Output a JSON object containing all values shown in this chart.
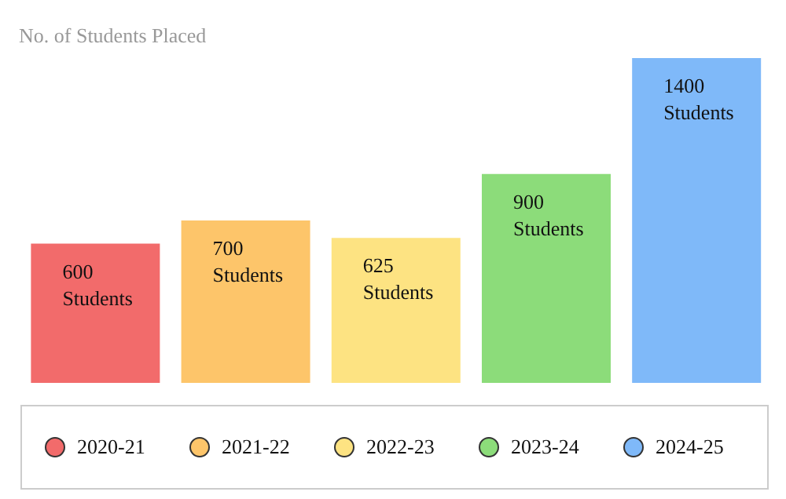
{
  "chart_data": {
    "type": "bar",
    "title": "No. of Students Placed",
    "categories": [
      null,
      null,
      null,
      null,
      null
    ],
    "stacked": true,
    "series": [
      {
        "name": "2020-21",
        "color": "#f26b6b",
        "values": [
          600,
          null,
          null,
          null,
          null
        ],
        "value_labels": [
          "600 Students",
          null,
          null,
          null,
          null
        ]
      },
      {
        "name": "2021-22",
        "color": "#fdc56a",
        "values": [
          null,
          700,
          null,
          null,
          null
        ],
        "value_labels": [
          null,
          "700 Students",
          null,
          null,
          null
        ]
      },
      {
        "name": "2022-23",
        "color": "#fde382",
        "values": [
          null,
          null,
          625,
          null,
          null
        ],
        "value_labels": [
          null,
          null,
          "625 Students",
          null,
          null
        ]
      },
      {
        "name": "2023-24",
        "color": "#8cdc7a",
        "values": [
          null,
          null,
          null,
          900,
          null
        ],
        "value_labels": [
          null,
          null,
          null,
          "900 Students",
          null
        ]
      },
      {
        "name": "2024-25",
        "color": "#7fb9f9",
        "values": [
          null,
          null,
          null,
          null,
          1400
        ],
        "value_labels": [
          null,
          null,
          null,
          null,
          "1400 Students"
        ]
      }
    ],
    "legend": "bottom"
  }
}
